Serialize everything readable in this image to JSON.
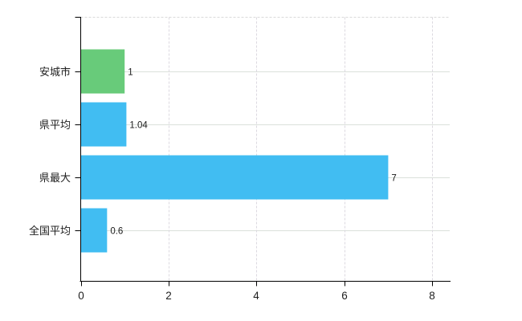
{
  "chart_data": {
    "type": "bar",
    "orientation": "horizontal",
    "title": "",
    "xlabel": "",
    "ylabel": "",
    "categories": [
      "安城市",
      "県平均",
      "県最大",
      "全国平均"
    ],
    "values": [
      1,
      1.04,
      7,
      0.6
    ],
    "value_labels": [
      "1",
      "1.04",
      "7",
      "0.6"
    ],
    "bar_colors": [
      "#68cb7a",
      "#41bdf2",
      "#41bdf2",
      "#41bdf2"
    ],
    "x_ticks": [
      0,
      2,
      4,
      6,
      8
    ],
    "x_tick_labels": [
      "0",
      "2",
      "4",
      "6",
      "8"
    ],
    "xlim": [
      0,
      8.4
    ],
    "grid": true,
    "legend": "none",
    "colors": {
      "background": "#ffffff",
      "axis": "#000000",
      "tick_text": "#1e1e1e",
      "value_text": "#1a1a1a",
      "grid_horizontal": "#dbe1db",
      "grid_vertical": "#dcd9e0",
      "top_border": "#d9d9d9"
    }
  }
}
